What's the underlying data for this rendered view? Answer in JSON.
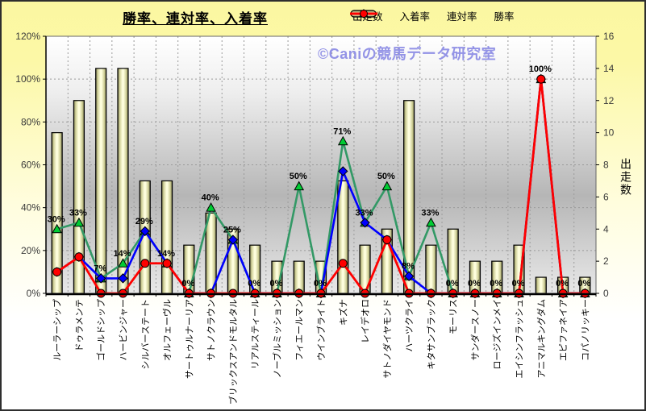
{
  "title": "勝率、連対率、入着率",
  "watermark": "©Caniの競馬データ研究室",
  "legend": [
    {
      "label": "出走数",
      "swatch": "bar"
    },
    {
      "label": "入着率",
      "swatch": "triangle-line",
      "line_color": "#339966",
      "marker_fill": "#00cc33"
    },
    {
      "label": "連対率",
      "swatch": "diamond-line",
      "line_color": "#0000ff",
      "marker_fill": "#0000ee"
    },
    {
      "label": "勝率",
      "swatch": "circle-line",
      "line_color": "#ff0000",
      "marker_fill": "#ff0000"
    }
  ],
  "colors": {
    "page_bg_top": "#fbf7a1",
    "page_bg_bottom": "#ffffff",
    "plot_bg_stops": [
      "#ffffff",
      "#eeeeee",
      "#b6b6b6",
      "#e8e8e8"
    ],
    "bar_dark": "#6f6f49",
    "bar_mid": "#cfcf96",
    "bar_light": "#ffffdf",
    "bar_border": "#000000",
    "grid": "#9b9b9b",
    "axis_line": "#000000",
    "plot_border": "#666666",
    "tick_text": "#3a3a3a",
    "label_text": "#000000",
    "watermark": "#9393e6",
    "series_place": "#339966",
    "series_place_marker": "#00cc33",
    "series_quinella": "#0000ff",
    "series_win": "#ff0000"
  },
  "chart_data": {
    "type": "combo-bar-line",
    "title": "勝率、連対率、入着率",
    "categories": [
      "ルーラーシップ",
      "ドゥラメンテ",
      "ゴールドシップ",
      "ハービンジャー",
      "シルバーステート",
      "オルフェーヴル",
      "サートゥルナーリア",
      "サトノクラウン",
      "ブリックスアンドモルタル",
      "リアルスティール",
      "ノーブルミッション",
      "フィエールマン",
      "ウインブライト",
      "キズナ",
      "レイデオロ",
      "サトノダイヤモンド",
      "ハーツクライ",
      "キタサンブラック",
      "モーリス",
      "サンダースノー",
      "ロージズインメイ",
      "エイシンフラッシュ",
      "アニマルキングダム",
      "エピファネイア",
      "コパノリッキー"
    ],
    "series": [
      {
        "name": "出走数",
        "type": "bar",
        "axis": "right",
        "values": [
          10,
          12,
          14,
          14,
          7,
          7,
          3,
          5,
          4,
          3,
          2,
          2,
          2,
          7,
          3,
          4,
          12,
          3,
          4,
          2,
          2,
          3,
          1,
          1,
          1
        ]
      },
      {
        "name": "入着率",
        "type": "line",
        "marker": "triangle",
        "axis": "left",
        "values": [
          30,
          33,
          7,
          14,
          29,
          14,
          0,
          40,
          25,
          0,
          0,
          50,
          0,
          71,
          33,
          50,
          8,
          33,
          0,
          0,
          0,
          0,
          100,
          0,
          0
        ],
        "point_labels": [
          "30%",
          "33%",
          "7%",
          "14%",
          "29%",
          "14%",
          "0%",
          "40%",
          "25%",
          "0%",
          "0%",
          "50%",
          "0%",
          "71%",
          "33%",
          "50%",
          "8%",
          "33%",
          "0%",
          "0%",
          "0%",
          "0%",
          "100%",
          "0%",
          "0%"
        ]
      },
      {
        "name": "連対率",
        "type": "line",
        "marker": "diamond",
        "axis": "left",
        "values": [
          10,
          17,
          7,
          7,
          29,
          14,
          0,
          0,
          25,
          0,
          0,
          0,
          0,
          57,
          33,
          25,
          8,
          0,
          0,
          0,
          0,
          0,
          100,
          0,
          0
        ]
      },
      {
        "name": "勝率",
        "type": "line",
        "marker": "circle",
        "axis": "left",
        "values": [
          10,
          17,
          0,
          0,
          14,
          14,
          0,
          0,
          0,
          0,
          0,
          0,
          0,
          14,
          0,
          25,
          0,
          0,
          0,
          0,
          0,
          0,
          100,
          0,
          0
        ]
      }
    ],
    "left_axis": {
      "min": 0,
      "max": 120,
      "step": 20,
      "ticks": [
        "0%",
        "20%",
        "40%",
        "60%",
        "80%",
        "100%",
        "120%"
      ]
    },
    "right_axis": {
      "min": 0,
      "max": 16,
      "step": 2,
      "title": "出走数",
      "ticks": [
        "0",
        "2",
        "4",
        "6",
        "8",
        "10",
        "12",
        "14",
        "16"
      ]
    },
    "grid": "horizontal-dotted and vertical-dotted",
    "legend_position": "top-right"
  }
}
